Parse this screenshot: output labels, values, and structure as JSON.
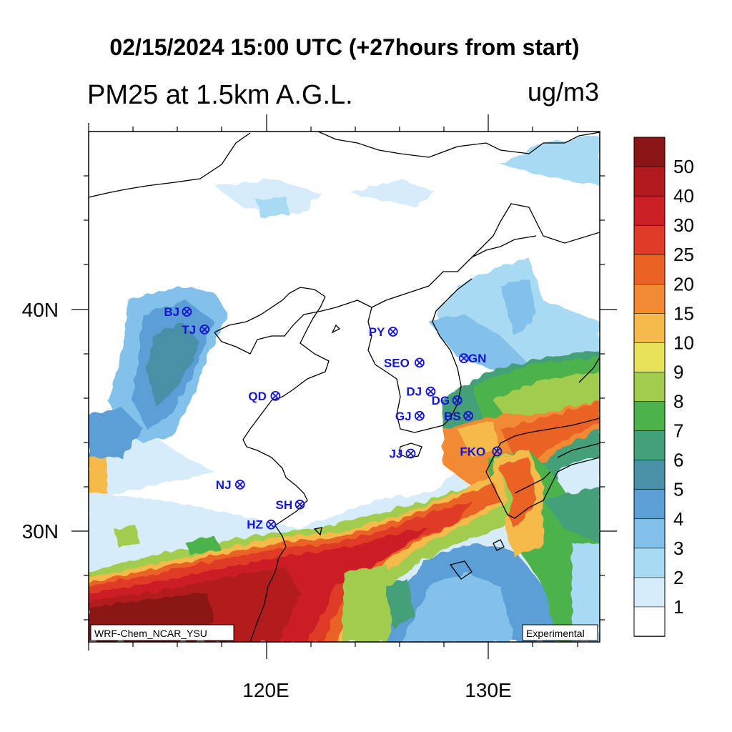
{
  "header": {
    "title": "02/15/2024 15:00 UTC (+27hours from start)",
    "variable": "PM25 at 1.5km A.G.L.",
    "units": "ug/m3"
  },
  "axes": {
    "lon_labels": [
      "120E",
      "130E"
    ],
    "lat_labels": [
      "40N",
      "30N"
    ]
  },
  "credits": {
    "model": "WRF-Chem_NCAR_YSU",
    "status": "Experimental"
  },
  "colorbar": {
    "labels": [
      "1",
      "2",
      "3",
      "4",
      "5",
      "6",
      "7",
      "8",
      "9",
      "10",
      "15",
      "20",
      "25",
      "30",
      "40",
      "50"
    ],
    "colors": [
      "#ffffff",
      "#d6ecfa",
      "#a8daf3",
      "#82c1ea",
      "#5b9fd6",
      "#4a8fa8",
      "#44a07a",
      "#4db24a",
      "#a2cc4e",
      "#e8e25a",
      "#f4bb4c",
      "#f18a33",
      "#ea6226",
      "#df3a28",
      "#cc1f26",
      "#b21b1e",
      "#8a1416"
    ]
  },
  "stations": [
    {
      "code": "BJ",
      "lon": 116.4,
      "lat": 39.9
    },
    {
      "code": "TJ",
      "lon": 117.2,
      "lat": 39.1
    },
    {
      "code": "PY",
      "lon": 125.7,
      "lat": 39.0
    },
    {
      "code": "SEO",
      "lon": 126.9,
      "lat": 37.6
    },
    {
      "code": "GN",
      "lon": 128.9,
      "lat": 37.8
    },
    {
      "code": "QD",
      "lon": 120.4,
      "lat": 36.1
    },
    {
      "code": "DJ",
      "lon": 127.4,
      "lat": 36.3
    },
    {
      "code": "DG",
      "lon": 128.6,
      "lat": 35.9
    },
    {
      "code": "GJ",
      "lon": 126.9,
      "lat": 35.2
    },
    {
      "code": "BS",
      "lon": 129.1,
      "lat": 35.2
    },
    {
      "code": "FKO",
      "lon": 130.4,
      "lat": 33.6
    },
    {
      "code": "JJ",
      "lon": 126.5,
      "lat": 33.5
    },
    {
      "code": "NJ",
      "lon": 118.8,
      "lat": 32.1
    },
    {
      "code": "SH",
      "lon": 121.5,
      "lat": 31.2
    },
    {
      "code": "HZ",
      "lon": 120.2,
      "lat": 30.3
    }
  ]
}
